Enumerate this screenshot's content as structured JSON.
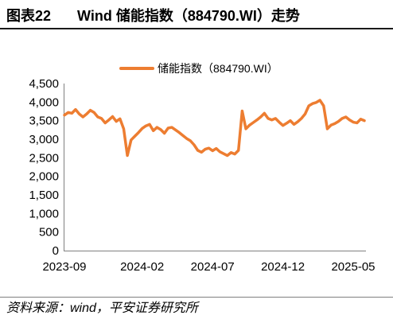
{
  "header": {
    "figure_number": "图表22"
  },
  "source": "资料来源：wind，平安证券研究所",
  "chart_data": {
    "type": "line",
    "title": "Wind 储能指数（884790.WI）走势",
    "ylim": [
      0,
      4500
    ],
    "y_ticks": [
      "0",
      "500",
      "1,000",
      "1,500",
      "2,000",
      "2,500",
      "3,000",
      "3,500",
      "4,000",
      "4,500"
    ],
    "x_ticks": [
      "2023-09",
      "2024-02",
      "2024-07",
      "2024-12",
      "2025-05"
    ],
    "legend": "top-center",
    "grid": false,
    "x": [
      "2023-09-01",
      "2023-09-08",
      "2023-09-15",
      "2023-09-22",
      "2023-09-28",
      "2023-10-09",
      "2023-10-13",
      "2023-10-20",
      "2023-10-27",
      "2023-11-03",
      "2023-11-10",
      "2023-11-17",
      "2023-11-24",
      "2023-12-01",
      "2023-12-08",
      "2023-12-15",
      "2023-12-22",
      "2024-01-02",
      "2024-01-09",
      "2024-01-16",
      "2024-01-23",
      "2024-02-01",
      "2024-02-08",
      "2024-02-19",
      "2024-02-23",
      "2024-03-01",
      "2024-03-11",
      "2024-03-18",
      "2024-03-25",
      "2024-04-02",
      "2024-04-10",
      "2024-04-18",
      "2024-04-26",
      "2024-05-06",
      "2024-05-13",
      "2024-05-21",
      "2024-05-29",
      "2024-06-06",
      "2024-06-14",
      "2024-06-21",
      "2024-07-01",
      "2024-07-08",
      "2024-07-15",
      "2024-07-23",
      "2024-07-31",
      "2024-08-08",
      "2024-08-16",
      "2024-08-23",
      "2024-09-02",
      "2024-09-09",
      "2024-09-18",
      "2024-09-25",
      "2024-10-08",
      "2024-10-11",
      "2024-10-18",
      "2024-10-28",
      "2024-11-04",
      "2024-11-12",
      "2024-11-20",
      "2024-12-02",
      "2024-12-09",
      "2024-12-16",
      "2024-12-23",
      "2025-01-02",
      "2025-01-10",
      "2025-01-17",
      "2025-01-27",
      "2025-02-05",
      "2025-02-12",
      "2025-02-20",
      "2025-02-28",
      "2025-03-07",
      "2025-03-17",
      "2025-03-24",
      "2025-04-01",
      "2025-04-09",
      "2025-04-17",
      "2025-04-25",
      "2025-05-06",
      "2025-05-13",
      "2025-05-21",
      "2025-05-29"
    ],
    "series": [
      {
        "name": "储能指数（884790.WI）",
        "color": "#ED7D31",
        "values": [
          3650,
          3720,
          3700,
          3800,
          3680,
          3600,
          3680,
          3780,
          3720,
          3600,
          3560,
          3440,
          3520,
          3610,
          3480,
          3550,
          3280,
          2560,
          2980,
          3080,
          3180,
          3290,
          3360,
          3400,
          3230,
          3320,
          3260,
          3160,
          3300,
          3320,
          3250,
          3180,
          3100,
          3020,
          2960,
          2850,
          2700,
          2650,
          2730,
          2760,
          2690,
          2750,
          2660,
          2610,
          2560,
          2640,
          2600,
          2700,
          3760,
          3280,
          3380,
          3450,
          3520,
          3600,
          3700,
          3560,
          3520,
          3560,
          3460,
          3370,
          3430,
          3500,
          3400,
          3470,
          3560,
          3680,
          3900,
          3960,
          3990,
          4050,
          3900,
          3280,
          3380,
          3420,
          3480,
          3560,
          3600,
          3520,
          3460,
          3440,
          3540,
          3500
        ]
      }
    ]
  }
}
